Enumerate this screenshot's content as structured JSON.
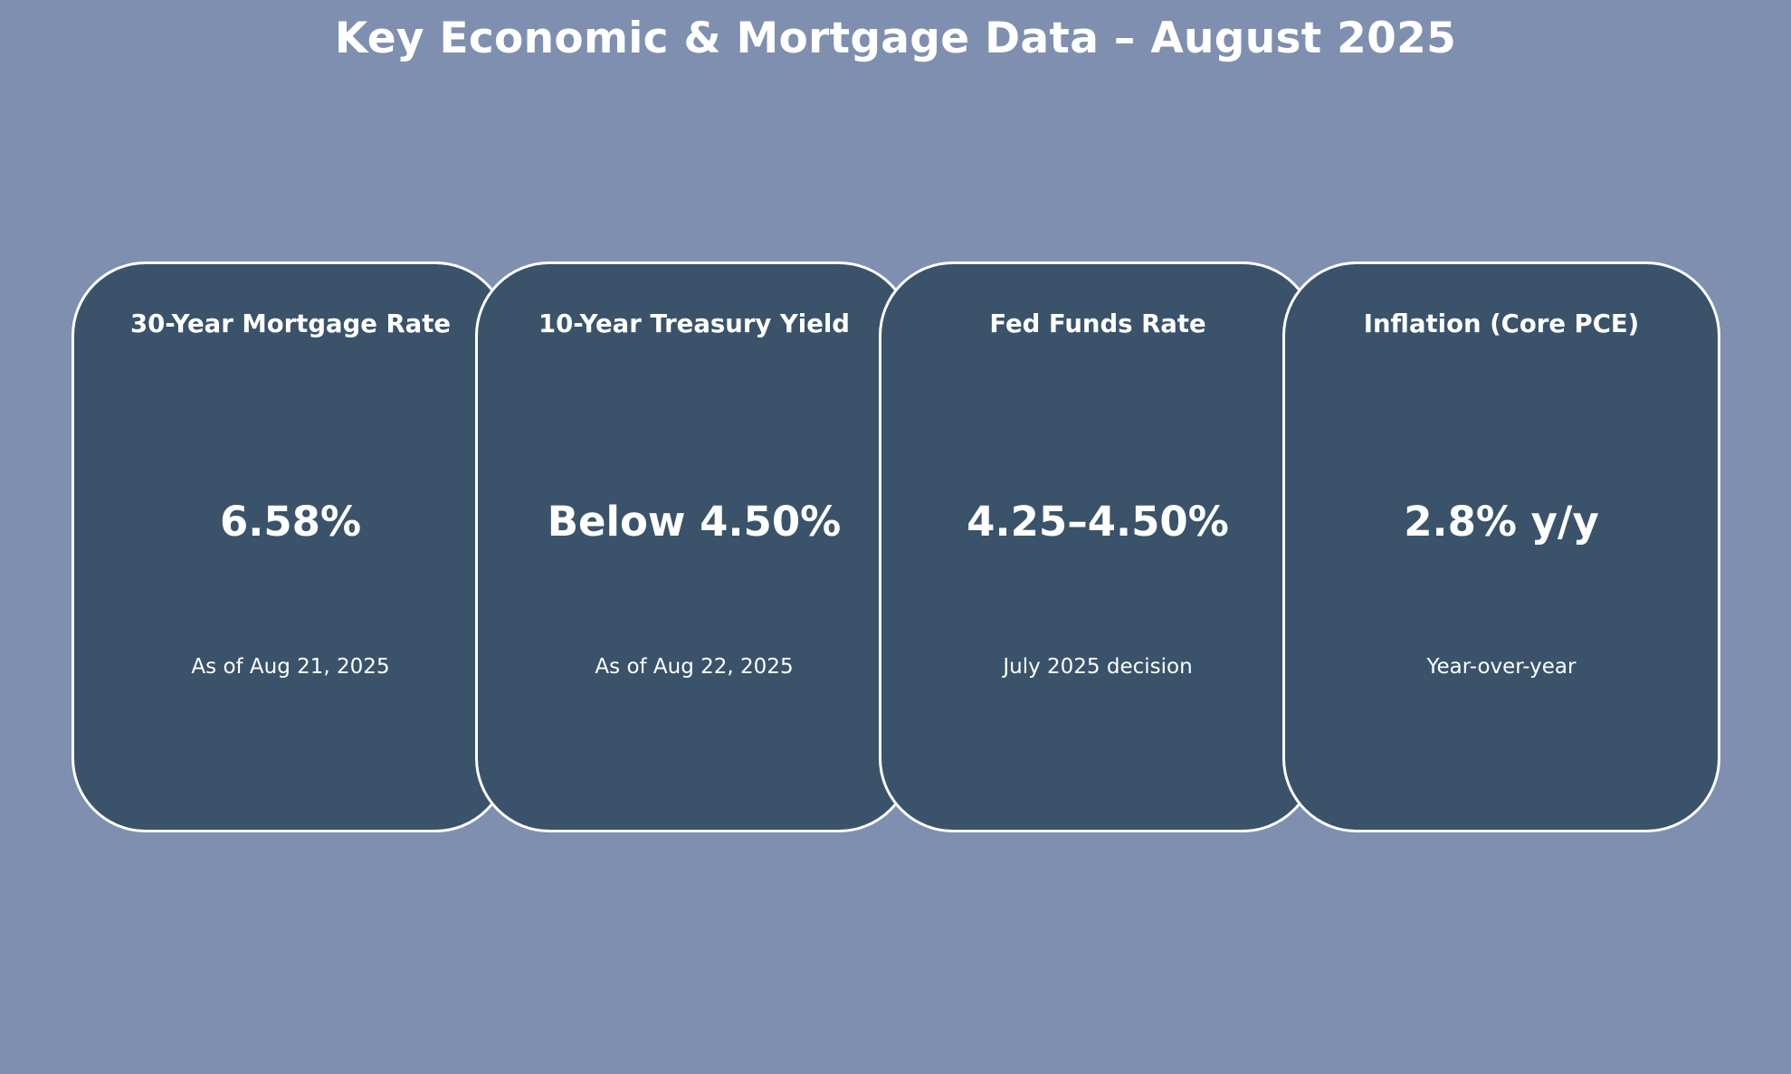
{
  "title": "Key Economic & Mortgage Data – August 2025",
  "colors": {
    "background": "#7f8faf",
    "card_fill": "#3a536b",
    "card_border": "#ffffff",
    "text": "#ffffff"
  },
  "cards": [
    {
      "label": "30-Year Mortgage Rate",
      "value": "6.58%",
      "note": "As of Aug 21, 2025"
    },
    {
      "label": "10-Year Treasury Yield",
      "value": "Below 4.50%",
      "note": "As of Aug 22, 2025"
    },
    {
      "label": "Fed Funds Rate",
      "value": "4.25–4.50%",
      "note": "July 2025 decision"
    },
    {
      "label": "Inflation (Core PCE)",
      "value": "2.8% y/y",
      "note": "Year-over-year"
    }
  ]
}
